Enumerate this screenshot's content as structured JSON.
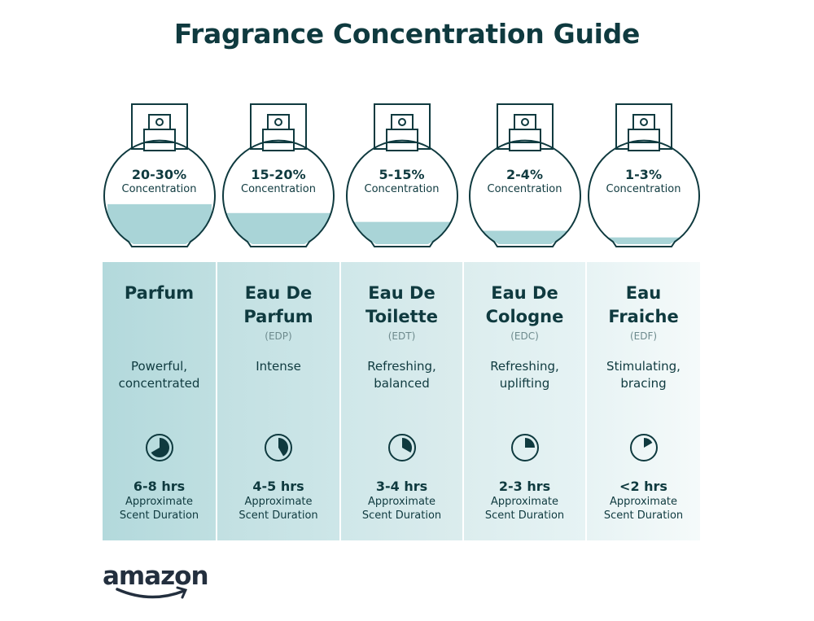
{
  "title": "Fragrance Concentration Guide",
  "colors": {
    "dark": "#0f3a3f",
    "liquid": "#a9d4d7",
    "panel_start": "#b3d9dc",
    "panel_end": "#eef7f8"
  },
  "concentration_label": "Concentration",
  "duration_label_1": "Approximate",
  "duration_label_2": "Scent Duration",
  "types": [
    {
      "concentration": "20-30%",
      "fill_level": 0.42,
      "name_1": "Parfum",
      "name_2": "",
      "abbr": "",
      "desc_1": "Powerful,",
      "desc_2": "concentrated",
      "duration": "6-8 hrs",
      "clock_hours": 8
    },
    {
      "concentration": "15-20%",
      "fill_level": 0.34,
      "name_1": "Eau De",
      "name_2": "Parfum",
      "abbr": "(EDP)",
      "desc_1": "Intense",
      "desc_2": "",
      "duration": "4-5 hrs",
      "clock_hours": 5
    },
    {
      "concentration": "5-15%",
      "fill_level": 0.26,
      "name_1": "Eau De",
      "name_2": "Toilette",
      "abbr": "(EDT)",
      "desc_1": "Refreshing,",
      "desc_2": "balanced",
      "duration": "3-4 hrs",
      "clock_hours": 4
    },
    {
      "concentration": "2-4%",
      "fill_level": 0.18,
      "name_1": "Eau De",
      "name_2": "Cologne",
      "abbr": "(EDC)",
      "desc_1": "Refreshing,",
      "desc_2": "uplifting",
      "duration": "2-3 hrs",
      "clock_hours": 3
    },
    {
      "concentration": "1-3%",
      "fill_level": 0.12,
      "name_1": "Eau",
      "name_2": "Fraiche",
      "abbr": "(EDF)",
      "desc_1": "Stimulating,",
      "desc_2": "bracing",
      "duration": "<2 hrs",
      "clock_hours": 2
    }
  ],
  "logo": {
    "text": "amazon"
  }
}
